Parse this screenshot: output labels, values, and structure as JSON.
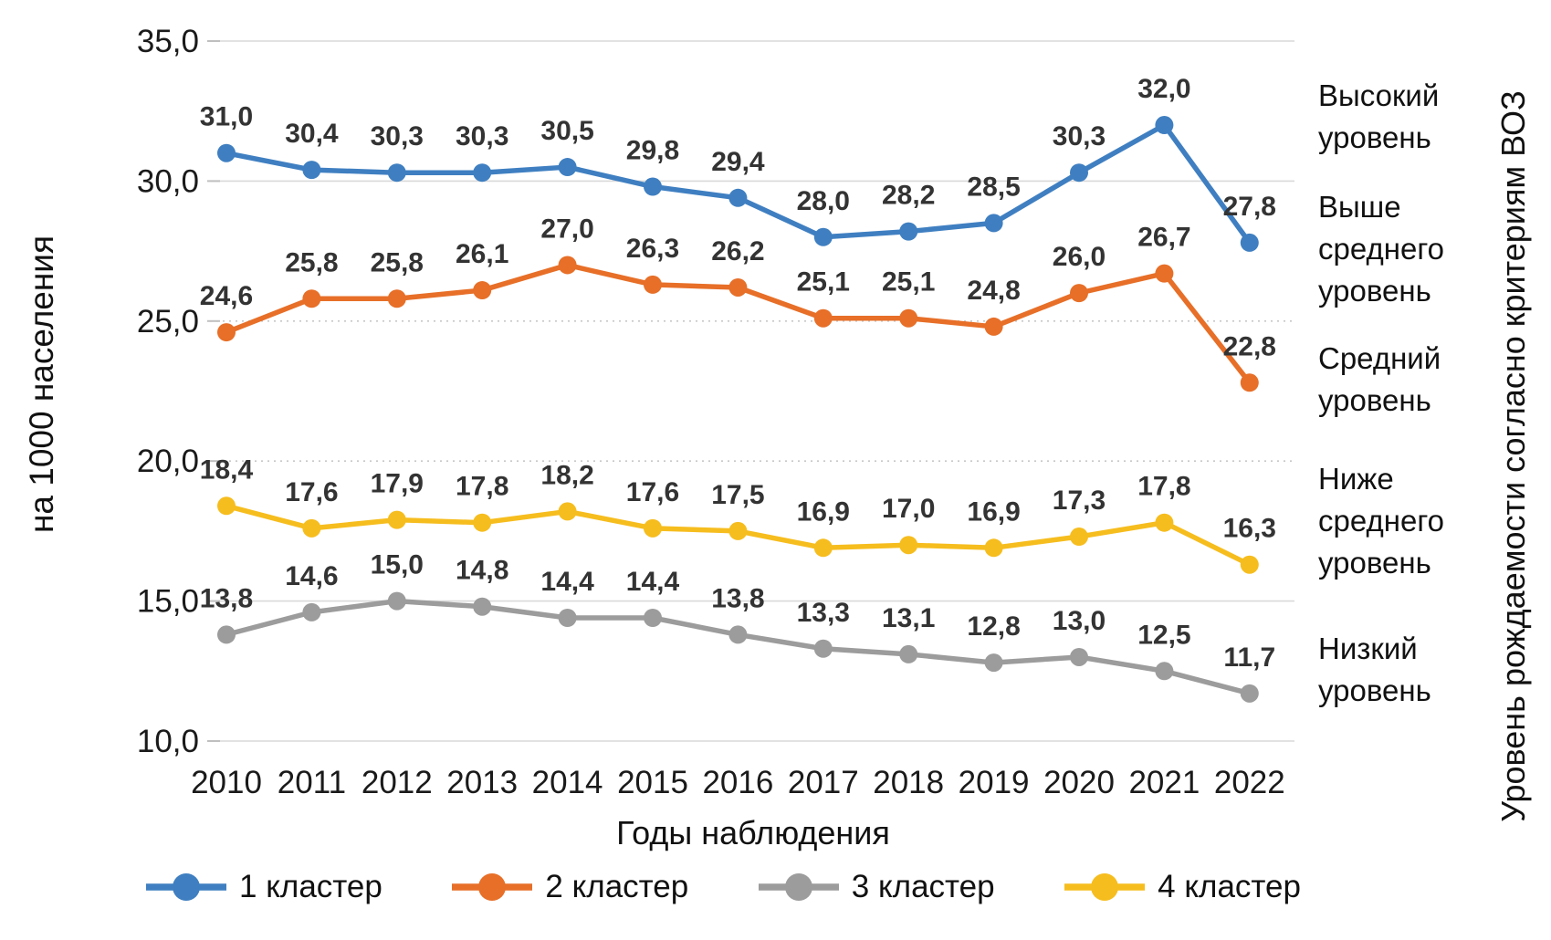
{
  "chart_data": {
    "type": "line",
    "title": "",
    "xlabel": "Годы наблюдения",
    "ylabel": "на 1000 населения",
    "right_axis_label": "Уровень рождаемости согласно критериям ВОЗ",
    "x": [
      2010,
      2011,
      2012,
      2013,
      2014,
      2015,
      2016,
      2017,
      2018,
      2019,
      2020,
      2021,
      2022
    ],
    "y_ticks": [
      35.0,
      30.0,
      25.0,
      20.0,
      15.0,
      10.0
    ],
    "ylim": [
      10.0,
      35.0
    ],
    "decimal_separator": ",",
    "grid": "horizontal",
    "legend_position": "bottom",
    "data_labels": true,
    "series": [
      {
        "name": "1 кластер",
        "color": "#3F7FC1",
        "values": [
          31.0,
          30.4,
          30.3,
          30.3,
          30.5,
          29.8,
          29.4,
          28.0,
          28.2,
          28.5,
          30.3,
          32.0,
          27.8
        ]
      },
      {
        "name": "2 кластер",
        "color": "#E76F28",
        "values": [
          24.6,
          25.8,
          25.8,
          26.1,
          27.0,
          26.3,
          26.2,
          25.1,
          25.1,
          24.8,
          26.0,
          26.7,
          22.8
        ]
      },
      {
        "name": "3 кластер",
        "color": "#9C9C9C",
        "values": [
          13.8,
          14.6,
          15.0,
          14.8,
          14.4,
          14.4,
          13.8,
          13.3,
          13.1,
          12.8,
          13.0,
          12.5,
          11.7
        ]
      },
      {
        "name": "4 кластер",
        "color": "#F6BD1E",
        "values": [
          18.4,
          17.6,
          17.9,
          17.8,
          18.2,
          17.6,
          17.5,
          16.9,
          17.0,
          16.9,
          17.3,
          17.8,
          16.3
        ]
      }
    ],
    "who_levels": [
      {
        "text": "Высокий уровень"
      },
      {
        "text": "Выше среднего уровень"
      },
      {
        "text": "Средний уровень"
      },
      {
        "text": "Ниже среднего уровень"
      },
      {
        "text": "Низкий уровень"
      }
    ],
    "colors": {
      "gridline": "#D9D9D9",
      "gridline_dashed": "#C8C8C8",
      "tick_text": "#1a1a1a",
      "data_label_text": "#333333"
    }
  }
}
